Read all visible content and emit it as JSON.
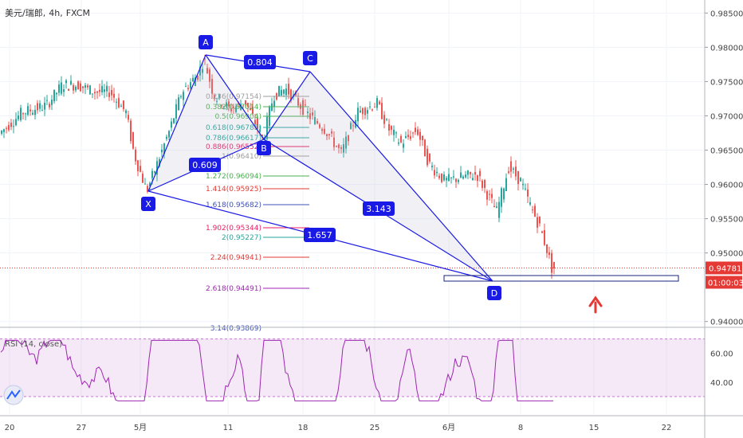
{
  "header": {
    "symbol": "美元/瑞郎",
    "sep1": ",",
    "interval": "4h",
    "sep2": ",",
    "exchange": "FXCM"
  },
  "price_axis": {
    "ticks": [
      "0.98500",
      "0.98000",
      "0.97500",
      "0.97000",
      "0.96500",
      "0.96000",
      "0.95500",
      "0.95000",
      "0.94000"
    ],
    "last_price": "0.94781",
    "countdown": "01:00:03",
    "last_price_color": "#e53935"
  },
  "time_axis": {
    "ticks": [
      "20",
      "27",
      "5月",
      "11",
      "18",
      "25",
      "6月",
      "8",
      "15",
      "22"
    ]
  },
  "rsi": {
    "label": "RSI (14, close)",
    "ticks": [
      "60.00",
      "40.00"
    ]
  },
  "pattern": {
    "points": [
      "X",
      "A",
      "B",
      "C",
      "D"
    ],
    "ratios": [
      "0.804",
      "0.609",
      "3.143",
      "1.657"
    ],
    "color": "#1a1ae6"
  },
  "fib_levels": [
    {
      "label": "0.236(0.97154)",
      "color": "#9e9e9e"
    },
    {
      "label": "0.382(0.97014)",
      "color": "#4caf50"
    },
    {
      "label": "0.5(0.96904)",
      "color": "#4caf50"
    },
    {
      "label": "0.618(0.96785)",
      "color": "#26a69a"
    },
    {
      "label": "0.786(0.96617)",
      "color": "#26a69a"
    },
    {
      "label": "0.886(0.96552)",
      "color": "#e91e63"
    },
    {
      "label": "1(0.96410)",
      "color": "#9e9e9e"
    },
    {
      "label": "1.272(0.96094)",
      "color": "#4caf50"
    },
    {
      "label": "1.414(0.95925)",
      "color": "#e53935"
    },
    {
      "label": "1.618(0.95682)",
      "color": "#3f51b5"
    },
    {
      "label": "1.902(0.95344)",
      "color": "#e91e63"
    },
    {
      "label": "2(0.95227)",
      "color": "#26a69a"
    },
    {
      "label": "2.24(0.94941)",
      "color": "#e53935"
    },
    {
      "label": "2.618(0.94491)",
      "color": "#9c27b0"
    },
    {
      "label": "3.14(0.93869)",
      "color": "#3f51b5"
    }
  ],
  "chart_data": {
    "type": "candlestick",
    "symbol": "美元/瑞郎",
    "interval": "4h",
    "y_range": [
      0.9395,
      0.9869
    ],
    "last_price": 0.94781,
    "harmonic_points": {
      "X": 0.959,
      "A": 0.9783,
      "B": 0.9665,
      "C": 0.9762,
      "D": 0.9455
    },
    "harmonic_ratios": {
      "XB": 0.609,
      "AC": 0.804,
      "BD": 3.143,
      "XD": 1.657
    },
    "rsi_range": [
      25,
      72
    ],
    "colors": {
      "up": "#26a69a",
      "down": "#ef5350"
    }
  }
}
